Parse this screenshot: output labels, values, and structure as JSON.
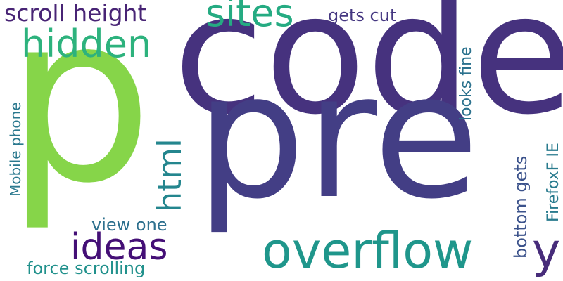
{
  "words": {
    "p": {
      "text": "p",
      "color": "#86d549"
    },
    "code": {
      "text": "code",
      "color": "#46327e"
    },
    "pre": {
      "text": "pre",
      "color": "#433e85"
    },
    "overflow": {
      "text": "overflow",
      "color": "#1f968b"
    },
    "sites": {
      "text": "sites",
      "color": "#25ab82"
    },
    "hidden": {
      "text": "hidden",
      "color": "#2db27d"
    },
    "ideas": {
      "text": "ideas",
      "color": "#440f76"
    },
    "scroll_height": {
      "text": "scroll height",
      "color": "#482475"
    },
    "html": {
      "text": "html",
      "color": "#24868e"
    },
    "y": {
      "text": "y",
      "color": "#472c7a"
    },
    "gets_cut": {
      "text": "gets cut",
      "color": "#453781"
    },
    "view_one": {
      "text": "view one",
      "color": "#2d708e"
    },
    "force_scrolling": {
      "text": "force scrolling",
      "color": "#21918c"
    },
    "mobile_phone": {
      "text": "Mobile phone",
      "color": "#2a788e"
    },
    "looks_fine": {
      "text": "looks fine",
      "color": "#2c728e"
    },
    "bottom_gets": {
      "text": "bottom gets",
      "color": "#3b528b"
    },
    "firefox_ie": {
      "text": "FirefoxF IE",
      "color": "#297b8e"
    }
  }
}
